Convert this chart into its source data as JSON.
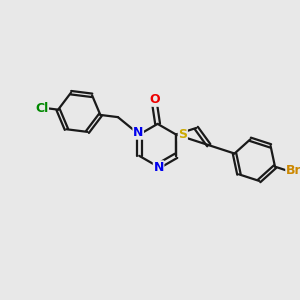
{
  "background_color": "#e8e8e8",
  "bond_color": "#1a1a1a",
  "atom_colors": {
    "N": "#0000ee",
    "O": "#ee0000",
    "S": "#ccaa00",
    "Br": "#cc8800",
    "Cl": "#008800"
  },
  "figsize": [
    3.0,
    3.0
  ],
  "dpi": 100
}
